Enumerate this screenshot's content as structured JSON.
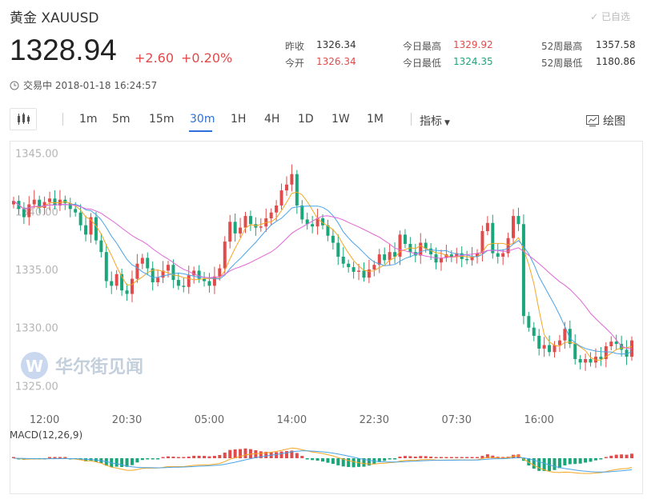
{
  "header": {
    "name": "黄金",
    "symbol": "XAUUSD",
    "follow_label": "已自选",
    "price": "1328.94",
    "change": "+2.60",
    "change_pct": "+0.20%",
    "status": "交易中 2018-01-18 16:24:57"
  },
  "stats": {
    "prev_close_label": "昨收",
    "prev_close": "1326.34",
    "open_label": "今开",
    "open": "1326.34",
    "high_label": "今日最高",
    "high": "1329.92",
    "low_label": "今日最低",
    "low": "1324.35",
    "w52_high_label": "52周最高",
    "w52_high": "1357.58",
    "w52_low_label": "52周最低",
    "w52_low": "1180.86"
  },
  "toolbar": {
    "intervals": [
      "1m",
      "5m",
      "15m",
      "30m",
      "1H",
      "4H",
      "1D",
      "1W",
      "1M"
    ],
    "active_interval": "30m",
    "indicator_label": "指标",
    "draw_label": "绘图"
  },
  "watermark": "华尔街见闻",
  "colors": {
    "up": "#e14b4b",
    "down": "#1aa67a",
    "accent": "#2e6fd8",
    "ma_short": "#f5a623",
    "ma_mid": "#4aa3e8",
    "ma_long": "#e066d6"
  },
  "chart_data": {
    "type": "candlestick",
    "ylim": [
      1324,
      1346
    ],
    "yticks": [
      "1345.00",
      "1340.00",
      "1335.00",
      "1330.00",
      "1325.00"
    ],
    "ytick_values": [
      1345,
      1340,
      1335,
      1330,
      1325
    ],
    "xticks": [
      "12:00",
      "20:30",
      "05:00",
      "14:00",
      "22:30",
      "07:30",
      "16:00"
    ],
    "xtick_index": [
      6,
      22,
      38,
      54,
      70,
      86,
      102
    ],
    "closes": [
      1340.9,
      1340.2,
      1339.5,
      1340.6,
      1341.0,
      1340.3,
      1340.8,
      1341.1,
      1340.5,
      1341.0,
      1340.7,
      1340.2,
      1339.9,
      1338.8,
      1338.0,
      1339.5,
      1337.5,
      1336.5,
      1334.0,
      1333.6,
      1334.6,
      1333.2,
      1332.9,
      1334.2,
      1335.5,
      1336.0,
      1335.1,
      1333.9,
      1334.3,
      1334.9,
      1335.4,
      1334.1,
      1333.6,
      1333.5,
      1334.5,
      1334.9,
      1334.2,
      1334.0,
      1333.6,
      1334.4,
      1335.1,
      1337.4,
      1339.1,
      1338.1,
      1338.6,
      1339.6,
      1338.9,
      1338.6,
      1338.7,
      1339.4,
      1339.9,
      1340.5,
      1341.8,
      1342.3,
      1343.2,
      1340.5,
      1339.3,
      1338.9,
      1338.7,
      1339.4,
      1338.8,
      1337.9,
      1337.3,
      1336.1,
      1335.5,
      1335.2,
      1334.8,
      1334.9,
      1334.3,
      1335.0,
      1335.4,
      1336.3,
      1335.8,
      1336.5,
      1336.1,
      1338.0,
      1337.2,
      1336.5,
      1336.2,
      1337.3,
      1336.8,
      1336.3,
      1335.6,
      1336.0,
      1336.3,
      1336.1,
      1336.4,
      1335.9,
      1335.8,
      1336.1,
      1336.4,
      1338.3,
      1339.0,
      1336.4,
      1336.1,
      1336.4,
      1337.7,
      1339.6,
      1338.9,
      1331.0,
      1330.0,
      1329.3,
      1328.2,
      1328.5,
      1327.9,
      1328.5,
      1328.9,
      1329.9,
      1328.6,
      1327.3,
      1327.0,
      1327.3,
      1327.0,
      1327.5,
      1327.3,
      1328.4,
      1328.8,
      1328.6,
      1328.1,
      1327.5,
      1328.9
    ],
    "macd_label": "MACD(12,26,9)"
  }
}
